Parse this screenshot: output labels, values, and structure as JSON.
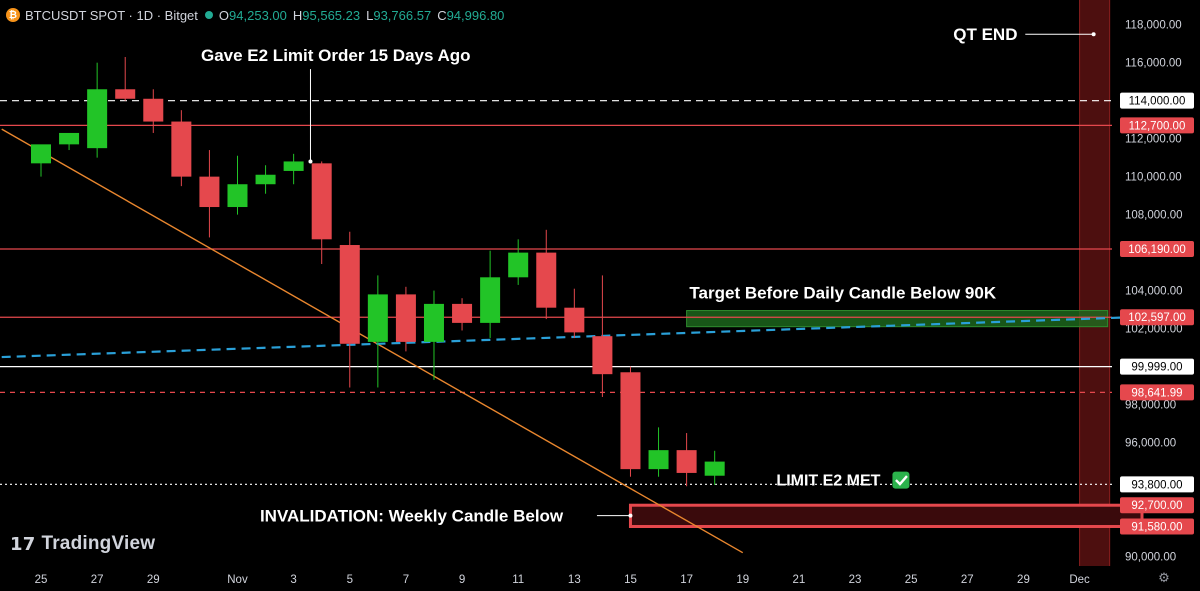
{
  "header": {
    "symbol": "BTCUSDT SPOT · 1D · Bitget",
    "coin_glyph": "₿",
    "open_label": "O",
    "open": "94,253.00",
    "high_label": "H",
    "high": "95,565.23",
    "low_label": "L",
    "low": "93,766.57",
    "close_label": "C",
    "close": "94,996.80"
  },
  "branding": {
    "name": "TradingView",
    "mark": "17"
  },
  "icons": {
    "settings": "gear-icon",
    "coin": "bitcoin-icon",
    "check": "check-icon"
  },
  "colors": {
    "background": "#000000",
    "up": "#22c427",
    "down": "#e5484d",
    "level_red": "#e5484d",
    "level_white": "#ffffff",
    "trendline": "#e8862e",
    "dashed_blue": "#2aa0d8",
    "target_zone": "#1e6b1e",
    "qt_band": "#5a1212"
  },
  "chart_data": {
    "type": "candlestick",
    "ylim": [
      89500,
      119300
    ],
    "y_ticks": [
      90000,
      92000,
      94000,
      96000,
      98000,
      100000,
      102000,
      104000,
      106000,
      108000,
      110000,
      112000,
      114000,
      116000,
      118000
    ],
    "y_tick_labels": [
      "90,000.00",
      "",
      "",
      "96,000.00",
      "98,000.00",
      "",
      "102,000.00",
      "104,000.00",
      "",
      "108,000.00",
      "110,000.00",
      "112,000.00",
      "",
      "116,000.00",
      "118,000.00"
    ],
    "x_ticks": [
      {
        "day": 0,
        "label": "25"
      },
      {
        "day": 2,
        "label": "27"
      },
      {
        "day": 4,
        "label": "29"
      },
      {
        "day": 7,
        "label": "Nov"
      },
      {
        "day": 9,
        "label": "3"
      },
      {
        "day": 11,
        "label": "5"
      },
      {
        "day": 13,
        "label": "7"
      },
      {
        "day": 15,
        "label": "9"
      },
      {
        "day": 17,
        "label": "11"
      },
      {
        "day": 19,
        "label": "13"
      },
      {
        "day": 21,
        "label": "15"
      },
      {
        "day": 23,
        "label": "17"
      },
      {
        "day": 25,
        "label": "19"
      },
      {
        "day": 27,
        "label": "21"
      },
      {
        "day": 29,
        "label": "23"
      },
      {
        "day": 31,
        "label": "25"
      },
      {
        "day": 33,
        "label": "27"
      },
      {
        "day": 35,
        "label": "29"
      },
      {
        "day": 37,
        "label": "Dec"
      }
    ],
    "candles": [
      {
        "day": 0,
        "o": 110700,
        "h": 111500,
        "l": 110000,
        "c": 111700
      },
      {
        "day": 1,
        "o": 111700,
        "h": 112200,
        "l": 111400,
        "c": 112300
      },
      {
        "day": 2,
        "o": 111500,
        "h": 116000,
        "l": 111000,
        "c": 114600
      },
      {
        "day": 3,
        "o": 114600,
        "h": 116300,
        "l": 114000,
        "c": 114100
      },
      {
        "day": 4,
        "o": 114100,
        "h": 114600,
        "l": 112300,
        "c": 112900
      },
      {
        "day": 5,
        "o": 112900,
        "h": 113500,
        "l": 109500,
        "c": 110000
      },
      {
        "day": 6,
        "o": 110000,
        "h": 111400,
        "l": 106800,
        "c": 108400
      },
      {
        "day": 7,
        "o": 108400,
        "h": 111100,
        "l": 108000,
        "c": 109600
      },
      {
        "day": 8,
        "o": 109600,
        "h": 110600,
        "l": 109100,
        "c": 110100
      },
      {
        "day": 9,
        "o": 110300,
        "h": 111200,
        "l": 109600,
        "c": 110800
      },
      {
        "day": 10,
        "o": 110700,
        "h": 110800,
        "l": 105400,
        "c": 106700
      },
      {
        "day": 11,
        "o": 106400,
        "h": 107100,
        "l": 98900,
        "c": 101200
      },
      {
        "day": 12,
        "o": 101300,
        "h": 104800,
        "l": 98900,
        "c": 103800
      },
      {
        "day": 13,
        "o": 103800,
        "h": 104200,
        "l": 100800,
        "c": 101300
      },
      {
        "day": 14,
        "o": 101300,
        "h": 104000,
        "l": 99300,
        "c": 103300
      },
      {
        "day": 15,
        "o": 103300,
        "h": 103600,
        "l": 101900,
        "c": 102300
      },
      {
        "day": 16,
        "o": 102300,
        "h": 106100,
        "l": 101500,
        "c": 104700
      },
      {
        "day": 17,
        "o": 104700,
        "h": 106700,
        "l": 104300,
        "c": 106000
      },
      {
        "day": 18,
        "o": 106000,
        "h": 107200,
        "l": 102500,
        "c": 103100
      },
      {
        "day": 19,
        "o": 103100,
        "h": 104100,
        "l": 101500,
        "c": 101800
      },
      {
        "day": 20,
        "o": 101600,
        "h": 104800,
        "l": 98400,
        "c": 99600
      },
      {
        "day": 21,
        "o": 99700,
        "h": 100000,
        "l": 94200,
        "c": 94600
      },
      {
        "day": 22,
        "o": 94600,
        "h": 96800,
        "l": 94200,
        "c": 95600
      },
      {
        "day": 23,
        "o": 95600,
        "h": 96500,
        "l": 93700,
        "c": 94400
      },
      {
        "day": 24,
        "o": 94253,
        "h": 95565.23,
        "l": 93766.57,
        "c": 94996.8
      }
    ],
    "levels": [
      {
        "name": "level-114000",
        "value": 114000,
        "label": "114,000.00",
        "style": "dashed",
        "color": "#ffffff",
        "tag_bg": "#ffffff",
        "tag_fg": "#000000"
      },
      {
        "name": "level-112700",
        "value": 112700,
        "label": "112,700.00",
        "style": "solid",
        "color": "#e5484d",
        "tag_bg": "#e5484d",
        "tag_fg": "#ffffff"
      },
      {
        "name": "level-106190",
        "value": 106190,
        "label": "106,190.00",
        "style": "solid",
        "color": "#e5484d",
        "tag_bg": "#e5484d",
        "tag_fg": "#ffffff"
      },
      {
        "name": "level-102597",
        "value": 102597,
        "label": "102,597.00",
        "style": "solid",
        "color": "#e5484d",
        "tag_bg": "#e5484d",
        "tag_fg": "#ffffff"
      },
      {
        "name": "level-99999",
        "value": 99999,
        "label": "99,999.00",
        "style": "solid",
        "color": "#ffffff",
        "tag_bg": "#ffffff",
        "tag_fg": "#000000"
      },
      {
        "name": "level-98641",
        "value": 98641.99,
        "label": "98,641.99",
        "style": "dashed",
        "color": "#e5484d",
        "tag_bg": "#e5484d",
        "tag_fg": "#ffffff"
      },
      {
        "name": "level-93800",
        "value": 93800,
        "label": "93,800.00",
        "style": "dotted",
        "color": "#ffffff",
        "tag_bg": "#ffffff",
        "tag_fg": "#000000"
      },
      {
        "name": "level-92700",
        "value": 92700,
        "label": "92,700.00",
        "style": "solid",
        "color": "#e5484d",
        "tag_bg": "#e5484d",
        "tag_fg": "#ffffff"
      },
      {
        "name": "level-91580",
        "value": 91580,
        "label": "91,580.00",
        "style": "solid",
        "color": "#e5484d",
        "tag_bg": "#e5484d",
        "tag_fg": "#ffffff"
      }
    ],
    "trendline": {
      "from": {
        "day": -1.4,
        "value": 112500
      },
      "to": {
        "day": 25,
        "value": 90200
      }
    },
    "dashed_trend": {
      "from": {
        "day": -1.4,
        "value": 100500
      },
      "to": {
        "day": 38.9,
        "value": 102600
      }
    },
    "target_zone": {
      "from_day": 23,
      "to_day": 38,
      "low": 102100,
      "high": 102950
    },
    "invalidation_zone": {
      "from_day": 21,
      "to_day": 39.5,
      "low": 91580,
      "high": 92700
    },
    "qt_band": {
      "from_day": 37,
      "to_day": 38
    },
    "annotations": [
      {
        "name": "annotation-e2-order",
        "text": "Gave E2 Limit Order 15 Days Ago",
        "day": 5.7,
        "value": 116400,
        "anchor_day": 9.6,
        "anchor_value": 110800
      },
      {
        "name": "annotation-qt-end",
        "text": "QT END",
        "day": 32.5,
        "value": 117500,
        "anchor_day": 37.5,
        "anchor_value": 117500
      },
      {
        "name": "annotation-target",
        "text": "Target Before Daily Candle Below 90K",
        "day": 23.1,
        "value": 103900
      },
      {
        "name": "annotation-limit-met",
        "text": "LIMIT E2 MET",
        "day": 26.2,
        "value": 94050,
        "check": "✅"
      },
      {
        "name": "annotation-invalidation",
        "text": "INVALIDATION: Weekly Candle Below",
        "day": 7.8,
        "value": 92150,
        "anchor_day": 21,
        "anchor_value": 92150
      }
    ]
  }
}
